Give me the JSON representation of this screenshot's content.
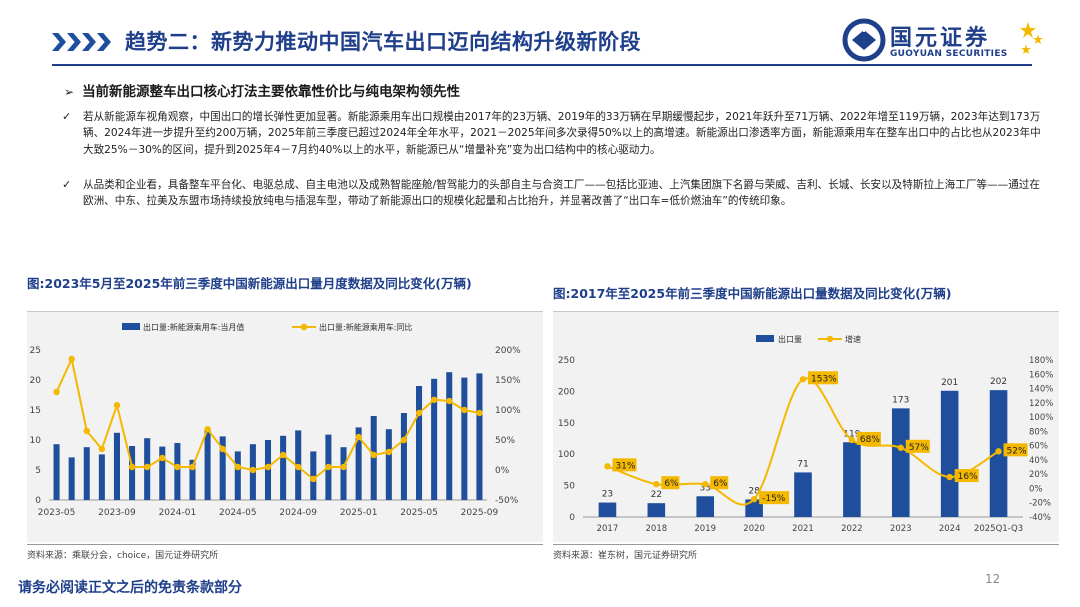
{
  "header": {
    "title": "趋势二：新势力推动中国汽车出口迈向结构升级新阶段",
    "logo_cn": "国元证券",
    "logo_en": "GUOYUAN SECURITIES"
  },
  "subtitle": "当前新能源整车出口核心打法主要依靠性价比与纯电架构领先性",
  "bullets": [
    "若从新能源车视角观察，中国出口的增长弹性更加显著。新能源乘用车出口规模由2017年的23万辆、2019年的33万辆在早期缓慢起步，2021年跃升至71万辆、2022年增至119万辆，2023年达到173万辆、2024年进一步提升至约200万辆，2025年前三季度已超过2024年全年水平，2021－2025年间多次录得50%以上的高增速。新能源出口渗透率方面，新能源乘用车在整车出口中的占比也从2023年中大致25%－30%的区间，提升到2025年4－7月约40%以上的水平，新能源已从“增量补充”变为出口结构中的核心驱动力。",
    "从品类和企业看，具备整车平台化、电驱总成、自主电池以及成熟智能座舱/智驾能力的头部自主与合资工厂——包括比亚迪、上汽集团旗下名爵与荣威、吉利、长城、长安以及特斯拉上海工厂等——通过在欧洲、中东、拉美及东盟市场持续投放纯电与插混车型，带动了新能源出口的规模化起量和占比抬升，并显著改善了“出口车=低价燃油车”的传统印象。"
  ],
  "chart1": {
    "title": "图:2023年5月至2025年前三季度中国新能源出口量月度数据及同比变化(万辆)",
    "source": "资料来源：乘联分会，choice，国元证券研究所",
    "colors": {
      "bar": "#1f4e9c",
      "line": "#f5b800"
    },
    "chart_data": {
      "type": "bar+line",
      "legend": [
        "出口量:新能源乘用车:当月值",
        "出口量:新能源乘用车:同比"
      ],
      "x_tick_labels": [
        "2023-05",
        "2023-09",
        "2024-01",
        "2024-05",
        "2024-09",
        "2025-01",
        "2025-05",
        "2025-09"
      ],
      "months": [
        "2023-05",
        "2023-06",
        "2023-07",
        "2023-08",
        "2023-09",
        "2023-10",
        "2023-11",
        "2023-12",
        "2024-01",
        "2024-02",
        "2024-03",
        "2024-04",
        "2024-05",
        "2024-06",
        "2024-07",
        "2024-08",
        "2024-09",
        "2024-10",
        "2024-11",
        "2024-12",
        "2025-01",
        "2025-02",
        "2025-03",
        "2025-04",
        "2025-05",
        "2025-06",
        "2025-07",
        "2025-08",
        "2025-09"
      ],
      "bar_values": [
        9.3,
        7.1,
        8.8,
        7.6,
        11.2,
        9.0,
        10.3,
        8.9,
        9.5,
        6.7,
        11.7,
        10.6,
        8.1,
        9.3,
        10.0,
        10.7,
        11.6,
        8.1,
        10.9,
        8.8,
        12.1,
        14.0,
        11.8,
        14.5,
        19.0,
        20.2,
        21.3,
        20.4,
        21.1
      ],
      "line_values": [
        130,
        185,
        65,
        35,
        108,
        5,
        5,
        20,
        5,
        5,
        68,
        35,
        5,
        0,
        5,
        25,
        5,
        -15,
        5,
        5,
        55,
        25,
        30,
        50,
        95,
        117,
        115,
        100,
        95
      ],
      "y_left": {
        "min": 0,
        "max": 25,
        "ticks": [
          0,
          5,
          10,
          15,
          20,
          25
        ]
      },
      "y_right": {
        "min": -50,
        "max": 200,
        "ticks": [
          "-50%",
          "0%",
          "50%",
          "100%",
          "150%",
          "200%"
        ]
      }
    }
  },
  "chart2": {
    "title": "图:2017年至2025年前三季度中国新能源出口量数据及同比变化(万辆)",
    "source": "资料来源：崔东树，国元证券研究所",
    "colors": {
      "bar": "#1f4e9c",
      "line": "#f5b800"
    },
    "chart_data": {
      "type": "bar+line",
      "legend": [
        "出口量",
        "增速"
      ],
      "categories": [
        "2017",
        "2018",
        "2019",
        "2020",
        "2021",
        "2022",
        "2023",
        "2024",
        "2025Q1-Q3"
      ],
      "bar_values": [
        23,
        22,
        33,
        28,
        71,
        119,
        173,
        201,
        202
      ],
      "line_values": [
        31,
        6,
        6,
        -15,
        153,
        68,
        57,
        16,
        52
      ],
      "line_labels": [
        "31%",
        "6%",
        "6%",
        "-15%",
        "153%",
        "68%",
        "57%",
        "16%",
        "52%"
      ],
      "y_left": {
        "min": 0,
        "max": 250,
        "ticks": [
          0,
          50,
          100,
          150,
          200,
          250
        ]
      },
      "y_right": {
        "min": -40,
        "max": 180,
        "ticks": [
          "-40%",
          "-20%",
          "0%",
          "20%",
          "40%",
          "60%",
          "80%",
          "100%",
          "120%",
          "140%",
          "160%",
          "180%"
        ]
      }
    }
  },
  "page_number": "12",
  "disclaimer": "请务必阅读正文之后的免责条款部分"
}
